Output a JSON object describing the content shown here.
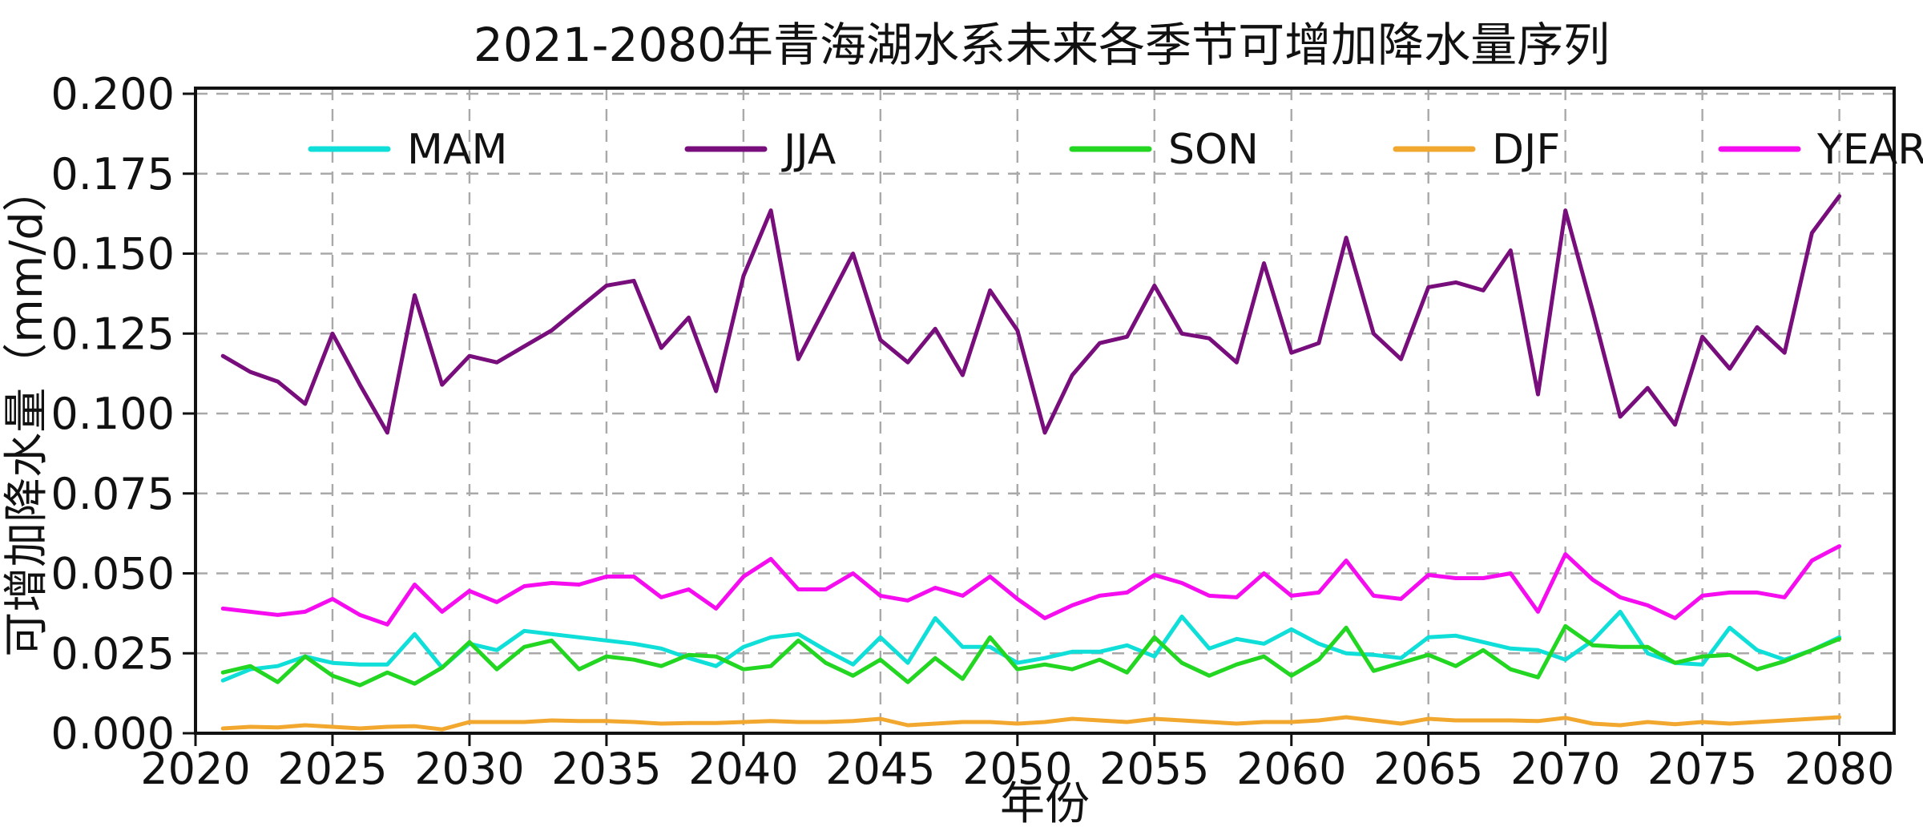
{
  "chart_data": {
    "type": "line",
    "title": "2021-2080年青海湖水系未来各季节可增加降水量序列",
    "xlabel": "年份",
    "ylabel": "可增加降水量（mm/d）",
    "xlim": [
      2020,
      2082
    ],
    "ylim": [
      0,
      0.2
    ],
    "xticks": [
      2020,
      2025,
      2030,
      2035,
      2040,
      2045,
      2050,
      2055,
      2060,
      2065,
      2070,
      2075,
      2080
    ],
    "ytick_values": [
      0,
      0.025,
      0.05,
      0.075,
      0.1,
      0.125,
      0.15,
      0.175,
      0.2
    ],
    "ytick_labels": [
      "0.000",
      "0.025",
      "0.050",
      "0.075",
      "0.100",
      "0.125",
      "0.150",
      "0.175",
      "0.200"
    ],
    "grid": true,
    "grid_style": "dashed",
    "grid_color": "#a9a9a9",
    "axis_color": "#111111",
    "legend_position": "top-inside-row",
    "x": [
      2021,
      2022,
      2023,
      2024,
      2025,
      2026,
      2027,
      2028,
      2029,
      2030,
      2031,
      2032,
      2033,
      2034,
      2035,
      2036,
      2037,
      2038,
      2039,
      2040,
      2041,
      2042,
      2043,
      2044,
      2045,
      2046,
      2047,
      2048,
      2049,
      2050,
      2051,
      2052,
      2053,
      2054,
      2055,
      2056,
      2057,
      2058,
      2059,
      2060,
      2061,
      2062,
      2063,
      2064,
      2065,
      2066,
      2067,
      2068,
      2069,
      2070,
      2071,
      2072,
      2073,
      2074,
      2075,
      2076,
      2077,
      2078,
      2079,
      2080
    ],
    "series": [
      {
        "name": "MAM",
        "color": "#0fdfd8",
        "values": [
          0.0165,
          0.02,
          0.021,
          0.024,
          0.022,
          0.0215,
          0.0215,
          0.031,
          0.0205,
          0.028,
          0.026,
          0.032,
          0.031,
          0.03,
          0.029,
          0.028,
          0.0265,
          0.0235,
          0.021,
          0.027,
          0.03,
          0.031,
          0.026,
          0.0215,
          0.03,
          0.022,
          0.036,
          0.027,
          0.027,
          0.022,
          0.0235,
          0.0255,
          0.0255,
          0.0275,
          0.024,
          0.0365,
          0.0265,
          0.0295,
          0.028,
          0.0325,
          0.028,
          0.025,
          0.0245,
          0.0235,
          0.03,
          0.0305,
          0.0285,
          0.0265,
          0.026,
          0.023,
          0.029,
          0.038,
          0.025,
          0.022,
          0.0215,
          0.033,
          0.026,
          0.023,
          0.026,
          0.03
        ]
      },
      {
        "name": "JJA",
        "color": "#780d7c",
        "values": [
          0.118,
          0.113,
          0.11,
          0.103,
          0.125,
          0.109,
          0.094,
          0.137,
          0.109,
          0.118,
          0.116,
          0.121,
          0.126,
          0.133,
          0.14,
          0.1415,
          0.1205,
          0.13,
          0.107,
          0.143,
          0.1635,
          0.117,
          0.1335,
          0.15,
          0.123,
          0.116,
          0.1265,
          0.112,
          0.1385,
          0.126,
          0.094,
          0.112,
          0.122,
          0.124,
          0.14,
          0.125,
          0.1235,
          0.116,
          0.147,
          0.119,
          0.122,
          0.155,
          0.125,
          0.117,
          0.1395,
          0.141,
          0.1385,
          0.151,
          0.106,
          0.1635,
          0.132,
          0.099,
          0.108,
          0.0965,
          0.124,
          0.114,
          0.127,
          0.119,
          0.1565,
          0.168
        ]
      },
      {
        "name": "SON",
        "color": "#22d622",
        "values": [
          0.019,
          0.021,
          0.016,
          0.024,
          0.018,
          0.015,
          0.019,
          0.0155,
          0.0205,
          0.0285,
          0.02,
          0.027,
          0.029,
          0.02,
          0.024,
          0.023,
          0.021,
          0.0245,
          0.024,
          0.02,
          0.021,
          0.029,
          0.022,
          0.018,
          0.023,
          0.016,
          0.0235,
          0.017,
          0.03,
          0.02,
          0.0215,
          0.02,
          0.023,
          0.019,
          0.03,
          0.022,
          0.018,
          0.0215,
          0.024,
          0.018,
          0.023,
          0.033,
          0.0195,
          0.022,
          0.0245,
          0.021,
          0.026,
          0.02,
          0.0175,
          0.0335,
          0.0275,
          0.027,
          0.027,
          0.022,
          0.024,
          0.0245,
          0.02,
          0.0225,
          0.026,
          0.0295
        ]
      },
      {
        "name": "DJF",
        "color": "#f2a72e",
        "values": [
          0.0015,
          0.002,
          0.0018,
          0.0025,
          0.002,
          0.0015,
          0.002,
          0.0022,
          0.0012,
          0.0035,
          0.0035,
          0.0035,
          0.004,
          0.0038,
          0.0038,
          0.0035,
          0.003,
          0.0032,
          0.0032,
          0.0035,
          0.0038,
          0.0035,
          0.0035,
          0.0038,
          0.0045,
          0.0025,
          0.003,
          0.0035,
          0.0035,
          0.003,
          0.0035,
          0.0045,
          0.004,
          0.0035,
          0.0045,
          0.004,
          0.0035,
          0.003,
          0.0035,
          0.0035,
          0.004,
          0.005,
          0.004,
          0.003,
          0.0045,
          0.004,
          0.004,
          0.004,
          0.0038,
          0.0048,
          0.003,
          0.0025,
          0.0035,
          0.0028,
          0.0035,
          0.003,
          0.0035,
          0.004,
          0.0045,
          0.005
        ]
      },
      {
        "name": "YEAR",
        "color": "#f50df0",
        "values": [
          0.039,
          0.038,
          0.037,
          0.038,
          0.042,
          0.037,
          0.034,
          0.0465,
          0.038,
          0.0445,
          0.041,
          0.046,
          0.047,
          0.0465,
          0.049,
          0.049,
          0.0425,
          0.045,
          0.039,
          0.049,
          0.0545,
          0.045,
          0.045,
          0.05,
          0.043,
          0.0415,
          0.0455,
          0.043,
          0.049,
          0.042,
          0.036,
          0.04,
          0.043,
          0.044,
          0.0495,
          0.047,
          0.043,
          0.0425,
          0.05,
          0.043,
          0.044,
          0.054,
          0.043,
          0.042,
          0.0495,
          0.0485,
          0.0485,
          0.05,
          0.038,
          0.056,
          0.048,
          0.0425,
          0.04,
          0.036,
          0.043,
          0.044,
          0.044,
          0.0425,
          0.054,
          0.0585
        ]
      }
    ]
  }
}
